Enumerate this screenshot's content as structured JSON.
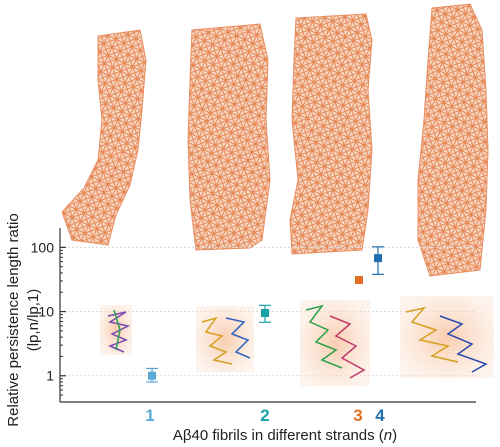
{
  "chart_data": {
    "type": "scatter",
    "x_categories": [
      "1",
      "2",
      "3",
      "4"
    ],
    "category_colors": [
      "#5aa9d6",
      "#17a2a6",
      "#e0701f",
      "#1f6fb0"
    ],
    "y": [
      1.0,
      9.5,
      31,
      68
    ],
    "y_err_low": [
      0.8,
      6.8,
      31,
      38
    ],
    "y_err_high": [
      1.3,
      12.5,
      31,
      102
    ],
    "xlabel": "Aβ40 fibrils in different strands (",
    "xlabel_var": "n",
    "xlabel_close": ")",
    "ylabel_line1": "Relative persistence length ratio",
    "ylabel_line2": "(lp,n/lp,1)",
    "ylim": [
      0.45,
      140
    ],
    "yscale": "log",
    "y_ticks": [
      "1",
      "10",
      "100"
    ],
    "grid": true,
    "fibril_color": "#e8895a"
  }
}
